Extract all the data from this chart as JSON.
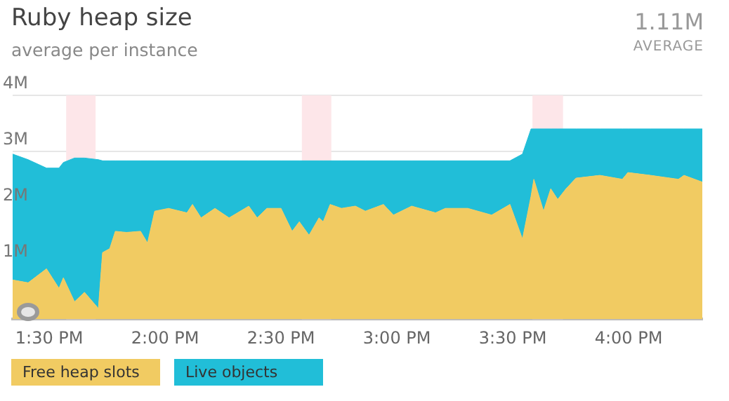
{
  "chart_data": {
    "type": "area",
    "title": "Ruby heap size",
    "subtitle": "average per instance",
    "annotations": [
      "1.11M",
      "AVERAGE"
    ],
    "stacked": true,
    "grid": "y",
    "legend": "bottom left",
    "marker": "none",
    "x": [
      13.342,
      13.409,
      13.488,
      13.542,
      13.561,
      13.609,
      13.652,
      13.712,
      13.73,
      13.761,
      13.785,
      13.833,
      13.894,
      13.924,
      13.955,
      14.015,
      14.094,
      14.118,
      14.155,
      14.215,
      14.276,
      14.361,
      14.397,
      14.439,
      14.5,
      14.548,
      14.579,
      14.621,
      14.664,
      14.682,
      14.712,
      14.761,
      14.821,
      14.864,
      14.942,
      14.985,
      15.064,
      15.167,
      15.209,
      15.306,
      15.409,
      15.488,
      15.542,
      15.579,
      15.591,
      15.633,
      15.664,
      15.694,
      15.73,
      15.773,
      15.876,
      15.973,
      15.997,
      16.094,
      16.215,
      16.239,
      16.318
    ],
    "xlim": [
      13.342,
      16.318
    ],
    "xticks": [
      {
        "value": 13.5,
        "label": "1:30 PM"
      },
      {
        "value": 14,
        "label": "2:00 PM"
      },
      {
        "value": 14.5,
        "label": "2:30 PM"
      },
      {
        "value": 15,
        "label": "3:00 PM"
      },
      {
        "value": 15.5,
        "label": "3:30 PM"
      },
      {
        "value": 16,
        "label": "4:00 PM"
      }
    ],
    "ylim": [
      0,
      4
    ],
    "yticks": [
      {
        "value": 1,
        "label": "1M"
      },
      {
        "value": 2,
        "label": "2M"
      },
      {
        "value": 3,
        "label": "3M"
      },
      {
        "value": 4,
        "label": "4M"
      }
    ],
    "bands": [
      {
        "axis": "x",
        "from": 13.573,
        "to": 13.7,
        "color": "#fde6e9"
      },
      {
        "axis": "x",
        "from": 14.59,
        "to": 14.717,
        "color": "#fde6e9"
      },
      {
        "axis": "x",
        "from": 15.585,
        "to": 15.717,
        "color": "#fde6e9"
      }
    ],
    "series": [
      {
        "name": "Free heap slots",
        "color": "#f1cb62",
        "values": [
          0.7,
          0.65,
          0.9,
          0.55,
          0.74,
          0.31,
          0.48,
          0.19,
          1.19,
          1.26,
          1.57,
          1.55,
          1.57,
          1.36,
          1.93,
          1.98,
          1.9,
          2.05,
          1.81,
          1.98,
          1.81,
          2.02,
          1.81,
          1.98,
          1.98,
          1.57,
          1.74,
          1.5,
          1.81,
          1.74,
          2.05,
          1.98,
          2.02,
          1.93,
          2.05,
          1.86,
          2.02,
          1.9,
          1.98,
          1.98,
          1.86,
          2.05,
          1.43,
          2.2,
          2.5,
          1.93,
          2.33,
          2.14,
          2.33,
          2.52,
          2.57,
          2.5,
          2.62,
          2.57,
          2.5,
          2.57,
          2.45
        ]
      },
      {
        "name": "Live objects",
        "color": "#21bed8",
        "values": [
          2.25,
          2.2,
          1.8,
          2.15,
          2.06,
          2.57,
          2.4,
          2.66,
          1.64,
          1.57,
          1.26,
          1.28,
          1.26,
          1.47,
          0.9,
          0.85,
          0.93,
          0.78,
          1.02,
          0.85,
          1.02,
          0.81,
          1.02,
          0.85,
          0.85,
          1.26,
          1.09,
          1.33,
          1.02,
          1.09,
          0.78,
          0.85,
          0.81,
          0.9,
          0.78,
          0.97,
          0.81,
          0.93,
          0.85,
          0.85,
          0.97,
          0.78,
          1.52,
          1.2,
          0.9,
          1.47,
          1.07,
          1.26,
          1.07,
          0.88,
          0.83,
          0.9,
          0.78,
          0.83,
          0.9,
          0.83,
          0.95
        ]
      }
    ]
  }
}
